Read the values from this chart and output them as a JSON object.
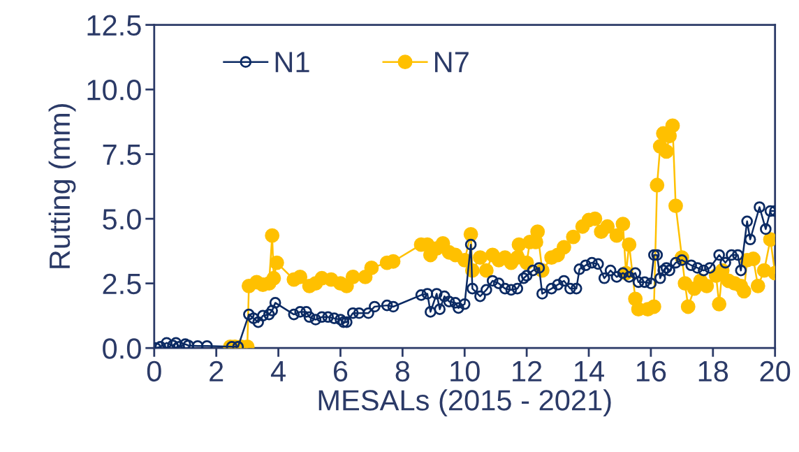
{
  "chart_data": {
    "type": "line",
    "xlabel": "MESALs (2015 - 2021)",
    "ylabel": "Rutting (mm)",
    "xlim": [
      0,
      20
    ],
    "xticks": [
      0,
      2,
      4,
      6,
      8,
      10,
      12,
      14,
      16,
      18,
      20
    ],
    "ylim": [
      0,
      12.5
    ],
    "yticks": [
      {
        "value": 0,
        "label": "0.0"
      },
      {
        "value": 2.5,
        "label": "2.5"
      },
      {
        "value": 5,
        "label": "5.0"
      },
      {
        "value": 7.5,
        "label": "7.5"
      },
      {
        "value": 10,
        "label": "10.0"
      },
      {
        "value": 12.5,
        "label": "12.5"
      }
    ],
    "grid": false,
    "legend": "top left",
    "series": [
      {
        "name": "N1",
        "color": "#0b2a63",
        "marker": "circle",
        "x": [
          0.05,
          0.2,
          0.4,
          0.6,
          0.7,
          0.8,
          1.0,
          1.1,
          1.4,
          1.7,
          2.5,
          2.7,
          3.05,
          3.2,
          3.35,
          3.5,
          3.7,
          3.8,
          3.9,
          4.5,
          4.7,
          4.9,
          5.0,
          5.2,
          5.4,
          5.6,
          5.8,
          6.0,
          6.1,
          6.2,
          6.4,
          6.6,
          6.9,
          7.1,
          7.5,
          7.7,
          8.6,
          8.8,
          8.9,
          9.1,
          9.2,
          9.35,
          9.5,
          9.7,
          9.8,
          10.0,
          10.2,
          10.25,
          10.5,
          10.7,
          10.9,
          11.1,
          11.3,
          11.5,
          11.7,
          11.9,
          12.0,
          12.2,
          12.4,
          12.5,
          12.8,
          13.0,
          13.2,
          13.4,
          13.6,
          13.7,
          13.9,
          14.1,
          14.3,
          14.5,
          14.7,
          14.9,
          15.1,
          15.3,
          15.5,
          15.6,
          15.8,
          16.0,
          16.1,
          16.2,
          16.3,
          16.4,
          16.5,
          16.6,
          16.8,
          17.0,
          17.3,
          17.5,
          17.7,
          17.9,
          18.2,
          18.4,
          18.6,
          18.8,
          18.9,
          19.1,
          19.2,
          19.5,
          19.7,
          19.85,
          20.0
        ],
        "values": [
          0.0,
          0.05,
          0.2,
          0.1,
          0.2,
          0.05,
          0.15,
          0.1,
          0.08,
          0.08,
          0.05,
          0.05,
          1.3,
          1.15,
          1.0,
          1.25,
          1.3,
          1.45,
          1.75,
          1.3,
          1.4,
          1.4,
          1.2,
          1.1,
          1.2,
          1.2,
          1.15,
          1.1,
          1.0,
          1.0,
          1.35,
          1.35,
          1.35,
          1.6,
          1.65,
          1.6,
          2.05,
          2.1,
          1.4,
          2.1,
          1.5,
          2.0,
          1.8,
          1.75,
          1.55,
          1.7,
          4.0,
          2.3,
          2.0,
          2.25,
          2.6,
          2.5,
          2.3,
          2.25,
          2.3,
          2.7,
          2.8,
          3.0,
          3.1,
          2.1,
          2.3,
          2.45,
          2.6,
          2.3,
          2.3,
          3.05,
          3.2,
          3.3,
          3.25,
          2.7,
          3.0,
          2.75,
          2.9,
          2.75,
          2.9,
          2.55,
          2.55,
          2.5,
          3.6,
          3.6,
          2.7,
          3.0,
          3.1,
          3.0,
          3.3,
          3.4,
          3.2,
          3.1,
          3.0,
          3.1,
          3.6,
          3.3,
          3.6,
          3.6,
          3.0,
          4.9,
          4.2,
          5.45,
          4.6,
          5.3,
          5.3
        ]
      },
      {
        "name": "N7",
        "color": "#ffc000",
        "marker": "circle",
        "x": [
          2.45,
          2.6,
          2.8,
          3.0,
          3.05,
          3.3,
          3.5,
          3.7,
          3.8,
          3.85,
          3.95,
          4.5,
          4.7,
          5.0,
          5.2,
          5.4,
          5.7,
          6.0,
          6.2,
          6.4,
          6.8,
          7.0,
          7.5,
          7.7,
          8.6,
          8.8,
          8.9,
          9.1,
          9.3,
          9.5,
          9.7,
          10.0,
          10.2,
          10.25,
          10.5,
          10.7,
          10.9,
          11.1,
          11.3,
          11.5,
          11.7,
          11.75,
          12.0,
          12.1,
          12.3,
          12.35,
          12.5,
          12.8,
          13.0,
          13.2,
          13.5,
          13.8,
          14.0,
          14.2,
          14.4,
          14.6,
          14.9,
          15.1,
          15.2,
          15.3,
          15.5,
          15.6,
          15.9,
          16.1,
          16.2,
          16.3,
          16.4,
          16.5,
          16.6,
          16.7,
          16.8,
          17.0,
          17.1,
          17.2,
          17.4,
          17.6,
          17.8,
          18.1,
          18.2,
          18.3,
          18.5,
          18.7,
          18.9,
          19.0,
          19.1,
          19.3,
          19.45,
          19.65,
          19.85,
          20.0
        ],
        "values": [
          0.05,
          0.05,
          0.05,
          0.05,
          2.4,
          2.55,
          2.45,
          2.5,
          4.35,
          2.7,
          3.3,
          2.65,
          2.75,
          2.4,
          2.5,
          2.7,
          2.65,
          2.5,
          2.4,
          2.75,
          2.75,
          3.1,
          3.3,
          3.35,
          4.0,
          4.0,
          3.6,
          3.85,
          4.05,
          3.7,
          3.6,
          3.4,
          4.4,
          3.0,
          3.5,
          3.0,
          3.6,
          3.4,
          3.5,
          3.3,
          3.5,
          4.0,
          3.3,
          4.1,
          4.1,
          4.5,
          3.0,
          3.5,
          3.6,
          3.9,
          4.3,
          4.7,
          4.95,
          5.0,
          4.5,
          4.7,
          4.35,
          4.8,
          2.9,
          4.0,
          1.9,
          1.5,
          1.5,
          1.6,
          6.3,
          7.8,
          8.3,
          7.6,
          8.2,
          8.6,
          5.5,
          3.5,
          2.5,
          1.6,
          2.3,
          2.6,
          2.4,
          2.8,
          1.7,
          3.0,
          2.6,
          2.5,
          2.4,
          2.2,
          3.4,
          3.45,
          2.4,
          3.0,
          4.2,
          2.9
        ]
      }
    ]
  }
}
